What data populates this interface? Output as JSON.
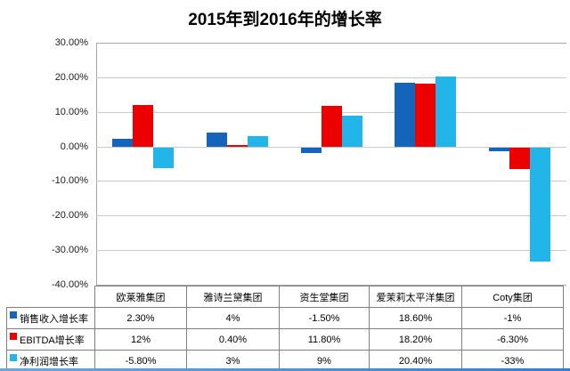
{
  "chart_data": {
    "type": "bar",
    "title": "2015年到2016年的增长率",
    "categories": [
      "欧莱雅集团",
      "雅诗兰黛集团",
      "资生堂集团",
      "爱茉莉太平洋集团",
      "Coty集团"
    ],
    "series": [
      {
        "name": "销售收入增长率",
        "color": "#1464bc",
        "values": [
          2.3,
          4,
          -1.5,
          18.6,
          -1
        ],
        "display_values": [
          "2.30%",
          "4%",
          "-1.50%",
          "18.60%",
          "-1%"
        ]
      },
      {
        "name": "EBITDA增长率",
        "color": "#ed0000",
        "values": [
          12,
          0.4,
          11.8,
          18.2,
          -6.3
        ],
        "display_values": [
          "12%",
          "0.40%",
          "11.80%",
          "18.20%",
          "-6.30%"
        ]
      },
      {
        "name": "净利润增长率",
        "color": "#22b5ea",
        "values": [
          -5.8,
          3,
          9,
          20.4,
          -33
        ],
        "display_values": [
          "-5.80%",
          "3%",
          "9%",
          "20.40%",
          "-33%"
        ]
      }
    ],
    "ylim": [
      -40,
      30
    ],
    "ytick_step": 10,
    "ytick_labels": [
      "30.00%",
      "20.00%",
      "10.00%",
      "0.00%",
      "-10.00%",
      "-20.00%",
      "-30.00%",
      "-40.00%"
    ],
    "grid": true,
    "legend_position": "table-left",
    "colors": {
      "gridline": "#c9c9c9",
      "axis": "#a6a6a6",
      "table_border": "#808080",
      "bottom_accent": "#2f7fd6"
    }
  }
}
